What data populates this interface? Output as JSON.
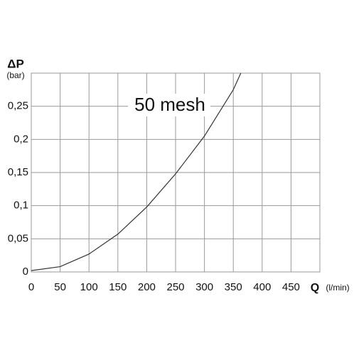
{
  "chart_data": {
    "type": "line",
    "annotation": "50 mesh",
    "y_label": "ΔP",
    "y_unit": "(bar)",
    "x_label": "Q",
    "x_unit": "(l/min)",
    "x": [
      0,
      50,
      100,
      150,
      200,
      250,
      300,
      350,
      363
    ],
    "values": [
      0.002,
      0.008,
      0.027,
      0.057,
      0.098,
      0.148,
      0.205,
      0.275,
      0.3
    ],
    "color": "#333333",
    "xlim": [
      0,
      500
    ],
    "xticks": [
      0,
      50,
      100,
      150,
      200,
      250,
      300,
      350,
      400,
      450
    ],
    "ylim": [
      0,
      0.3
    ],
    "yticks": [
      0,
      {
        "value": 0.05,
        "label": "0,05"
      },
      {
        "value": 0.1,
        "label": "0,1"
      },
      {
        "value": 0.15,
        "label": "0,15"
      },
      {
        "value": 0.2,
        "label": "0,2"
      },
      {
        "value": 0.25,
        "label": "0,25"
      }
    ],
    "grid": true
  }
}
